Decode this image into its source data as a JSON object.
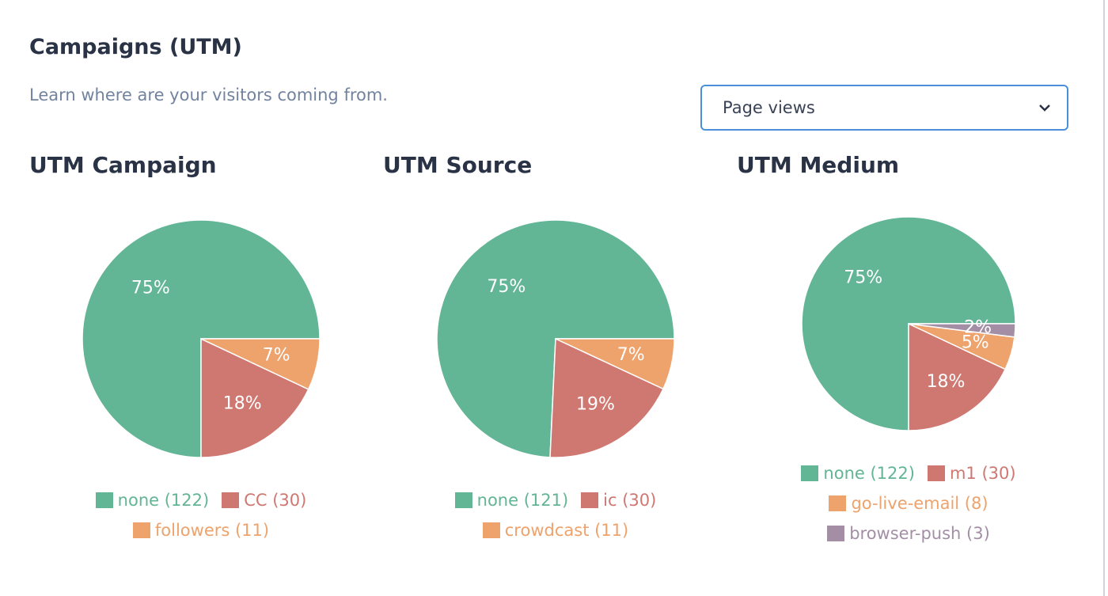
{
  "header": {
    "title": "Campaigns (UTM)",
    "subtitle": "Learn where are your visitors coming from."
  },
  "select": {
    "value": "Page views"
  },
  "chart_data": [
    {
      "type": "pie",
      "title": "UTM Campaign",
      "categories": [
        "none (122)",
        "CC (30)",
        "followers (11)"
      ],
      "values": [
        75,
        18,
        7
      ],
      "value_labels": [
        "75%",
        "18%",
        "7%"
      ],
      "colors": [
        "#62b595",
        "#cf7872",
        "#eea26c"
      ]
    },
    {
      "type": "pie",
      "title": "UTM Source",
      "categories": [
        "none (121)",
        "ic (30)",
        "crowdcast (11)"
      ],
      "values": [
        75,
        19,
        7
      ],
      "value_labels": [
        "75%",
        "19%",
        "7%"
      ],
      "colors": [
        "#62b595",
        "#cf7872",
        "#eea26c"
      ]
    },
    {
      "type": "pie",
      "title": "UTM Medium",
      "categories": [
        "none (122)",
        "m1 (30)",
        "go-live-email (8)",
        "browser-push (3)"
      ],
      "values": [
        75,
        18,
        5,
        2
      ],
      "value_labels": [
        "75%",
        "18%",
        "5%",
        "2%"
      ],
      "colors": [
        "#62b595",
        "#cf7872",
        "#eea26c",
        "#a48ea6"
      ]
    }
  ]
}
